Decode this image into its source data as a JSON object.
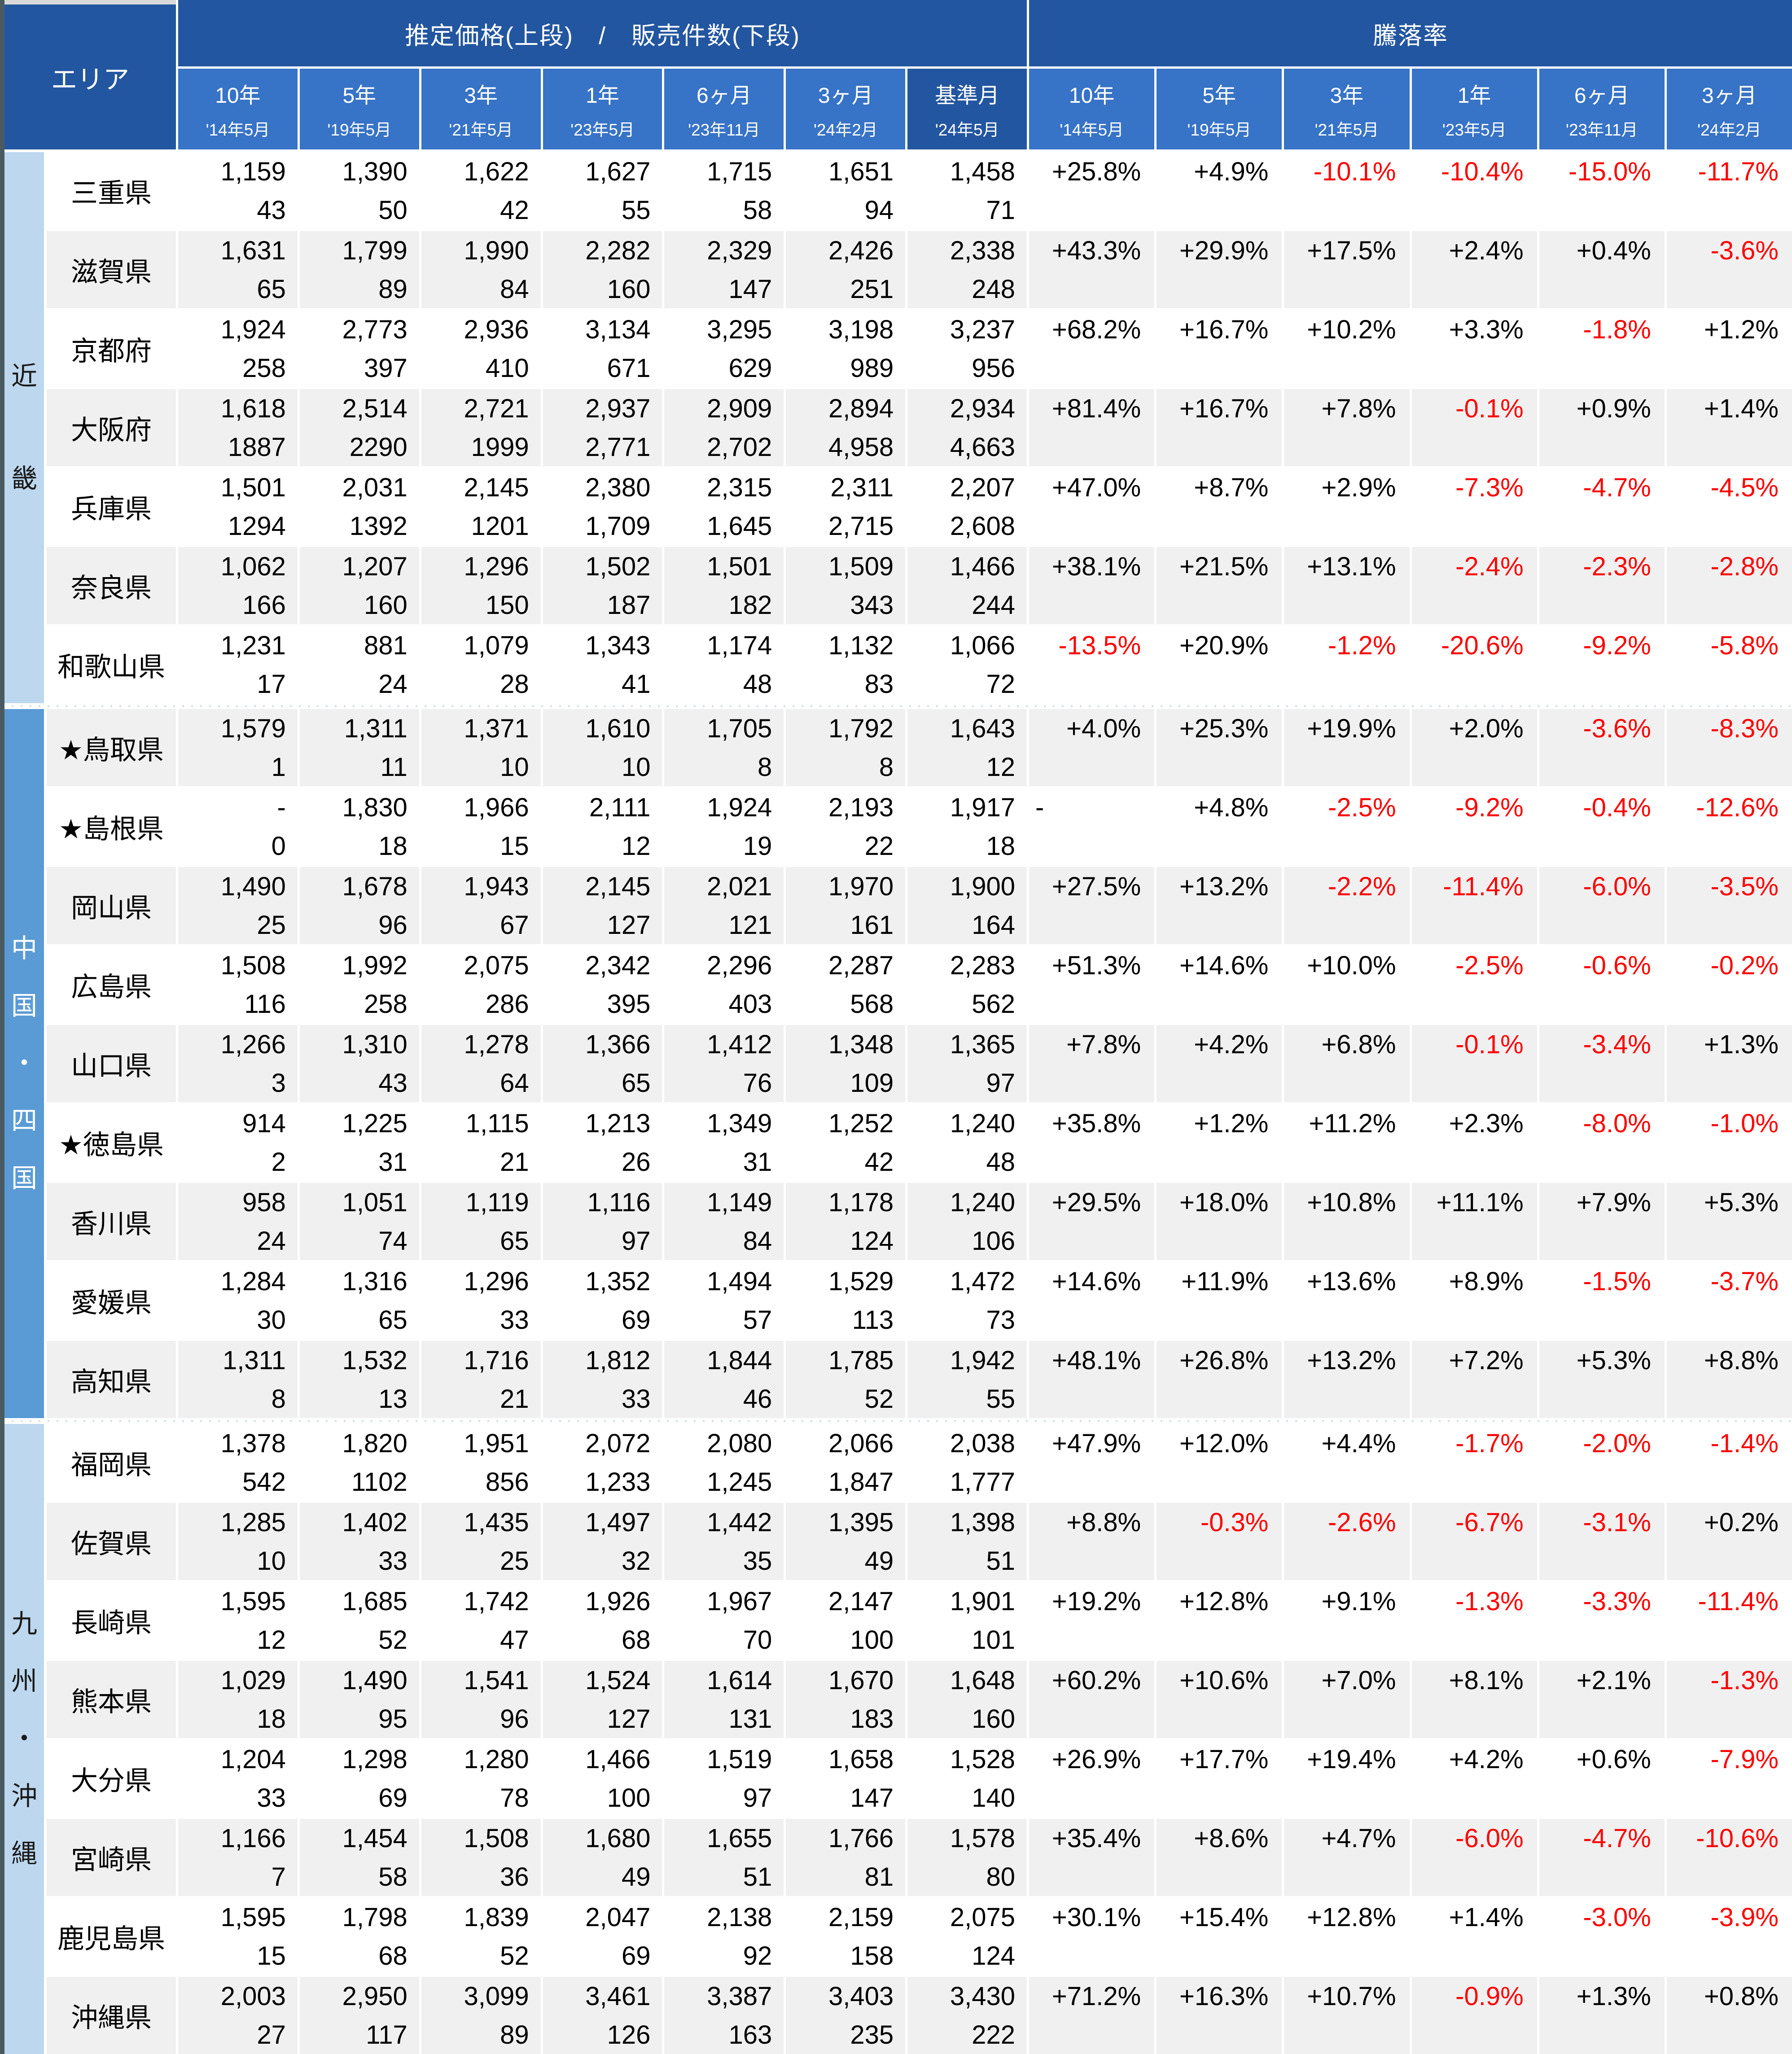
{
  "colors": {
    "header_dark": "#2356A0",
    "header_sub": "#3773C6",
    "band_light": "#BDD7EE",
    "band_medium": "#5A9BD5",
    "row_alt": "#F0F0F0",
    "negative": "#FF0000",
    "positive_text": "#000000"
  },
  "table": {
    "area_header": "エリア",
    "price_header": "推定価格(上段)　/　販売件数(下段)",
    "rate_header": "騰落率",
    "price_columns": [
      {
        "period": "10年",
        "date": "'14年5月"
      },
      {
        "period": "5年",
        "date": "'19年5月"
      },
      {
        "period": "3年",
        "date": "'21年5月"
      },
      {
        "period": "1年",
        "date": "'23年5月"
      },
      {
        "period": "6ヶ月",
        "date": "'23年11月"
      },
      {
        "period": "3ヶ月",
        "date": "'24年2月"
      },
      {
        "period": "基準月",
        "date": "'24年5月",
        "is_base": true
      }
    ],
    "rate_columns": [
      {
        "period": "10年",
        "date": "'14年5月"
      },
      {
        "period": "5年",
        "date": "'19年5月"
      },
      {
        "period": "3年",
        "date": "'21年5月"
      },
      {
        "period": "1年",
        "date": "'23年5月"
      },
      {
        "period": "6ヶ月",
        "date": "'23年11月"
      },
      {
        "period": "3ヶ月",
        "date": "'24年2月"
      }
    ],
    "regions": [
      {
        "name": "近畿",
        "chars": [
          "近",
          "畿"
        ],
        "band": "light",
        "rows": [
          {
            "prefecture": "三重県",
            "prices": [
              "1,159",
              "1,390",
              "1,622",
              "1,627",
              "1,715",
              "1,651",
              "1,458"
            ],
            "counts": [
              "43",
              "50",
              "42",
              "55",
              "58",
              "94",
              "71"
            ],
            "rates": [
              "+25.8%",
              "+4.9%",
              "-10.1%",
              "-10.4%",
              "-15.0%",
              "-11.7%"
            ]
          },
          {
            "prefecture": "滋賀県",
            "prices": [
              "1,631",
              "1,799",
              "1,990",
              "2,282",
              "2,329",
              "2,426",
              "2,338"
            ],
            "counts": [
              "65",
              "89",
              "84",
              "160",
              "147",
              "251",
              "248"
            ],
            "rates": [
              "+43.3%",
              "+29.9%",
              "+17.5%",
              "+2.4%",
              "+0.4%",
              "-3.6%"
            ]
          },
          {
            "prefecture": "京都府",
            "prices": [
              "1,924",
              "2,773",
              "2,936",
              "3,134",
              "3,295",
              "3,198",
              "3,237"
            ],
            "counts": [
              "258",
              "397",
              "410",
              "671",
              "629",
              "989",
              "956"
            ],
            "rates": [
              "+68.2%",
              "+16.7%",
              "+10.2%",
              "+3.3%",
              "-1.8%",
              "+1.2%"
            ]
          },
          {
            "prefecture": "大阪府",
            "prices": [
              "1,618",
              "2,514",
              "2,721",
              "2,937",
              "2,909",
              "2,894",
              "2,934"
            ],
            "counts": [
              "1887",
              "2290",
              "1999",
              "2,771",
              "2,702",
              "4,958",
              "4,663"
            ],
            "rates": [
              "+81.4%",
              "+16.7%",
              "+7.8%",
              "-0.1%",
              "+0.9%",
              "+1.4%"
            ]
          },
          {
            "prefecture": "兵庫県",
            "prices": [
              "1,501",
              "2,031",
              "2,145",
              "2,380",
              "2,315",
              "2,311",
              "2,207"
            ],
            "counts": [
              "1294",
              "1392",
              "1201",
              "1,709",
              "1,645",
              "2,715",
              "2,608"
            ],
            "rates": [
              "+47.0%",
              "+8.7%",
              "+2.9%",
              "-7.3%",
              "-4.7%",
              "-4.5%"
            ]
          },
          {
            "prefecture": "奈良県",
            "prices": [
              "1,062",
              "1,207",
              "1,296",
              "1,502",
              "1,501",
              "1,509",
              "1,466"
            ],
            "counts": [
              "166",
              "160",
              "150",
              "187",
              "182",
              "343",
              "244"
            ],
            "rates": [
              "+38.1%",
              "+21.5%",
              "+13.1%",
              "-2.4%",
              "-2.3%",
              "-2.8%"
            ]
          },
          {
            "prefecture": "和歌山県",
            "prices": [
              "1,231",
              "881",
              "1,079",
              "1,343",
              "1,174",
              "1,132",
              "1,066"
            ],
            "counts": [
              "17",
              "24",
              "28",
              "41",
              "48",
              "83",
              "72"
            ],
            "rates": [
              "-13.5%",
              "+20.9%",
              "-1.2%",
              "-20.6%",
              "-9.2%",
              "-5.8%"
            ]
          }
        ]
      },
      {
        "name": "中国・四国",
        "chars": [
          "中",
          "国",
          "・",
          "四",
          "国"
        ],
        "band": "medium",
        "rows": [
          {
            "prefecture": "★鳥取県",
            "prices": [
              "1,579",
              "1,311",
              "1,371",
              "1,610",
              "1,705",
              "1,792",
              "1,643"
            ],
            "counts": [
              "1",
              "11",
              "10",
              "10",
              "8",
              "8",
              "12"
            ],
            "rates": [
              "+4.0%",
              "+25.3%",
              "+19.9%",
              "+2.0%",
              "-3.6%",
              "-8.3%"
            ]
          },
          {
            "prefecture": "★島根県",
            "prices": [
              "-",
              "1,830",
              "1,966",
              "2,111",
              "1,924",
              "2,193",
              "1,917"
            ],
            "counts": [
              "0",
              "18",
              "15",
              "12",
              "19",
              "22",
              "18"
            ],
            "rates": [
              "-",
              "+4.8%",
              "-2.5%",
              "-9.2%",
              "-0.4%",
              "-12.6%"
            ]
          },
          {
            "prefecture": "岡山県",
            "prices": [
              "1,490",
              "1,678",
              "1,943",
              "2,145",
              "2,021",
              "1,970",
              "1,900"
            ],
            "counts": [
              "25",
              "96",
              "67",
              "127",
              "121",
              "161",
              "164"
            ],
            "rates": [
              "+27.5%",
              "+13.2%",
              "-2.2%",
              "-11.4%",
              "-6.0%",
              "-3.5%"
            ]
          },
          {
            "prefecture": "広島県",
            "prices": [
              "1,508",
              "1,992",
              "2,075",
              "2,342",
              "2,296",
              "2,287",
              "2,283"
            ],
            "counts": [
              "116",
              "258",
              "286",
              "395",
              "403",
              "568",
              "562"
            ],
            "rates": [
              "+51.3%",
              "+14.6%",
              "+10.0%",
              "-2.5%",
              "-0.6%",
              "-0.2%"
            ]
          },
          {
            "prefecture": "山口県",
            "prices": [
              "1,266",
              "1,310",
              "1,278",
              "1,366",
              "1,412",
              "1,348",
              "1,365"
            ],
            "counts": [
              "3",
              "43",
              "64",
              "65",
              "76",
              "109",
              "97"
            ],
            "rates": [
              "+7.8%",
              "+4.2%",
              "+6.8%",
              "-0.1%",
              "-3.4%",
              "+1.3%"
            ]
          },
          {
            "prefecture": "★徳島県",
            "prices": [
              "914",
              "1,225",
              "1,115",
              "1,213",
              "1,349",
              "1,252",
              "1,240"
            ],
            "counts": [
              "2",
              "31",
              "21",
              "26",
              "31",
              "42",
              "48"
            ],
            "rates": [
              "+35.8%",
              "+1.2%",
              "+11.2%",
              "+2.3%",
              "-8.0%",
              "-1.0%"
            ]
          },
          {
            "prefecture": "香川県",
            "prices": [
              "958",
              "1,051",
              "1,119",
              "1,116",
              "1,149",
              "1,178",
              "1,240"
            ],
            "counts": [
              "24",
              "74",
              "65",
              "97",
              "84",
              "124",
              "106"
            ],
            "rates": [
              "+29.5%",
              "+18.0%",
              "+10.8%",
              "+11.1%",
              "+7.9%",
              "+5.3%"
            ]
          },
          {
            "prefecture": "愛媛県",
            "prices": [
              "1,284",
              "1,316",
              "1,296",
              "1,352",
              "1,494",
              "1,529",
              "1,472"
            ],
            "counts": [
              "30",
              "65",
              "33",
              "69",
              "57",
              "113",
              "73"
            ],
            "rates": [
              "+14.6%",
              "+11.9%",
              "+13.6%",
              "+8.9%",
              "-1.5%",
              "-3.7%"
            ]
          },
          {
            "prefecture": "高知県",
            "prices": [
              "1,311",
              "1,532",
              "1,716",
              "1,812",
              "1,844",
              "1,785",
              "1,942"
            ],
            "counts": [
              "8",
              "13",
              "21",
              "33",
              "46",
              "52",
              "55"
            ],
            "rates": [
              "+48.1%",
              "+26.8%",
              "+13.2%",
              "+7.2%",
              "+5.3%",
              "+8.8%"
            ]
          }
        ]
      },
      {
        "name": "九州・沖縄",
        "chars": [
          "九",
          "州",
          "・",
          "沖",
          "縄"
        ],
        "band": "light",
        "rows": [
          {
            "prefecture": "福岡県",
            "prices": [
              "1,378",
              "1,820",
              "1,951",
              "2,072",
              "2,080",
              "2,066",
              "2,038"
            ],
            "counts": [
              "542",
              "1102",
              "856",
              "1,233",
              "1,245",
              "1,847",
              "1,777"
            ],
            "rates": [
              "+47.9%",
              "+12.0%",
              "+4.4%",
              "-1.7%",
              "-2.0%",
              "-1.4%"
            ]
          },
          {
            "prefecture": "佐賀県",
            "prices": [
              "1,285",
              "1,402",
              "1,435",
              "1,497",
              "1,442",
              "1,395",
              "1,398"
            ],
            "counts": [
              "10",
              "33",
              "25",
              "32",
              "35",
              "49",
              "51"
            ],
            "rates": [
              "+8.8%",
              "-0.3%",
              "-2.6%",
              "-6.7%",
              "-3.1%",
              "+0.2%"
            ]
          },
          {
            "prefecture": "長崎県",
            "prices": [
              "1,595",
              "1,685",
              "1,742",
              "1,926",
              "1,967",
              "2,147",
              "1,901"
            ],
            "counts": [
              "12",
              "52",
              "47",
              "68",
              "70",
              "100",
              "101"
            ],
            "rates": [
              "+19.2%",
              "+12.8%",
              "+9.1%",
              "-1.3%",
              "-3.3%",
              "-11.4%"
            ]
          },
          {
            "prefecture": "熊本県",
            "prices": [
              "1,029",
              "1,490",
              "1,541",
              "1,524",
              "1,614",
              "1,670",
              "1,648"
            ],
            "counts": [
              "18",
              "95",
              "96",
              "127",
              "131",
              "183",
              "160"
            ],
            "rates": [
              "+60.2%",
              "+10.6%",
              "+7.0%",
              "+8.1%",
              "+2.1%",
              "-1.3%"
            ]
          },
          {
            "prefecture": "大分県",
            "prices": [
              "1,204",
              "1,298",
              "1,280",
              "1,466",
              "1,519",
              "1,658",
              "1,528"
            ],
            "counts": [
              "33",
              "69",
              "78",
              "100",
              "97",
              "147",
              "140"
            ],
            "rates": [
              "+26.9%",
              "+17.7%",
              "+19.4%",
              "+4.2%",
              "+0.6%",
              "-7.9%"
            ]
          },
          {
            "prefecture": "宮崎県",
            "prices": [
              "1,166",
              "1,454",
              "1,508",
              "1,680",
              "1,655",
              "1,766",
              "1,578"
            ],
            "counts": [
              "7",
              "58",
              "36",
              "49",
              "51",
              "81",
              "80"
            ],
            "rates": [
              "+35.4%",
              "+8.6%",
              "+4.7%",
              "-6.0%",
              "-4.7%",
              "-10.6%"
            ]
          },
          {
            "prefecture": "鹿児島県",
            "prices": [
              "1,595",
              "1,798",
              "1,839",
              "2,047",
              "2,138",
              "2,159",
              "2,075"
            ],
            "counts": [
              "15",
              "68",
              "52",
              "69",
              "92",
              "158",
              "124"
            ],
            "rates": [
              "+30.1%",
              "+15.4%",
              "+12.8%",
              "+1.4%",
              "-3.0%",
              "-3.9%"
            ]
          },
          {
            "prefecture": "沖縄県",
            "prices": [
              "2,003",
              "2,950",
              "3,099",
              "3,461",
              "3,387",
              "3,403",
              "3,430"
            ],
            "counts": [
              "27",
              "117",
              "89",
              "126",
              "163",
              "235",
              "222"
            ],
            "rates": [
              "+71.2%",
              "+16.3%",
              "+10.7%",
              "-0.9%",
              "+1.3%",
              "+0.8%"
            ]
          }
        ]
      }
    ]
  }
}
